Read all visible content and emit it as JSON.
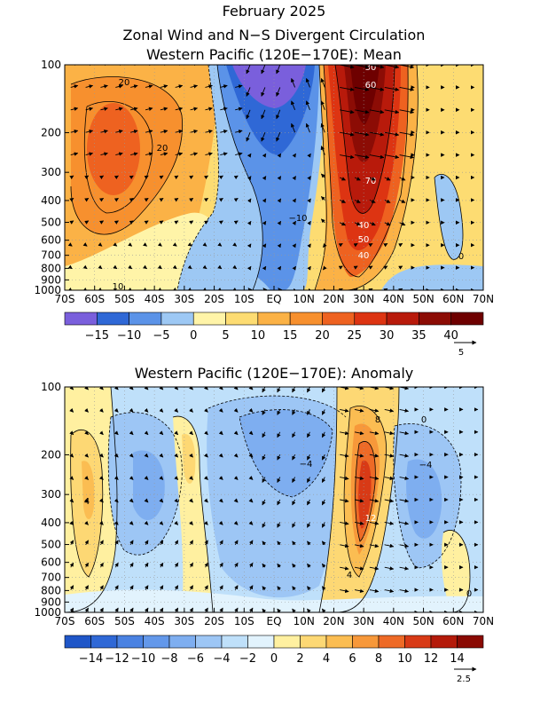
{
  "header": {
    "line1": "February 2025",
    "line2": "Zonal Wind and N−S Divergent Circulation"
  },
  "chart_data": [
    {
      "type": "heatmap",
      "title": "Western Pacific (120E−170E): Mean",
      "x_ticks": [
        "70S",
        "60S",
        "50S",
        "40S",
        "30S",
        "20S",
        "10S",
        "EQ",
        "10N",
        "20N",
        "30N",
        "40N",
        "50N",
        "60N",
        "70N"
      ],
      "y_ticks": [
        100,
        200,
        300,
        400,
        500,
        600,
        700,
        800,
        900,
        1000
      ],
      "y_scale": "log-pressure (inverted)",
      "colorbar_levels": [
        -15,
        -10,
        -5,
        0,
        5,
        10,
        15,
        20,
        25,
        30,
        35,
        40
      ],
      "colorbar_labels": [
        "−15",
        "−10",
        "−5",
        "0",
        "5",
        "10",
        "15",
        "20",
        "25",
        "30",
        "35",
        "40"
      ],
      "colorbar_colors": [
        "#7a5fdc",
        "#2f68d6",
        "#5b93e8",
        "#9dc8f4",
        "#fff4a8",
        "#fddc72",
        "#fbb246",
        "#f7902e",
        "#ee6220",
        "#dd3412",
        "#b81a0b",
        "#8c0c05",
        "#6e0000"
      ],
      "vector_ref": "5",
      "contour_labels": [
        "20",
        "20",
        "60",
        "30",
        "70",
        "−10",
        "40",
        "50",
        "40",
        "0",
        "10"
      ],
      "features": [
        {
          "name": "SH subtropical westerly max",
          "lat": -50,
          "p": 250,
          "value": 25
        },
        {
          "name": "NH subtropical jet core",
          "lat": 32,
          "p": 200,
          "value": 70
        },
        {
          "name": "Equatorial upper easterlies",
          "lat": 5,
          "p": 120,
          "value": -15
        }
      ]
    },
    {
      "type": "heatmap",
      "title": "Western Pacific (120E−170E): Anomaly",
      "x_ticks": [
        "70S",
        "60S",
        "50S",
        "40S",
        "30S",
        "20S",
        "10S",
        "EQ",
        "10N",
        "20N",
        "30N",
        "40N",
        "50N",
        "60N",
        "70N"
      ],
      "y_ticks": [
        100,
        200,
        300,
        400,
        500,
        600,
        700,
        800,
        900,
        1000
      ],
      "y_scale": "log-pressure (inverted)",
      "colorbar_levels": [
        -14,
        -12,
        -10,
        -8,
        -6,
        -4,
        -2,
        0,
        2,
        4,
        6,
        8,
        10,
        12,
        14
      ],
      "colorbar_labels": [
        "−14",
        "−12",
        "−10",
        "−8",
        "−6",
        "−4",
        "−2",
        "0",
        "2",
        "4",
        "6",
        "8",
        "10",
        "12",
        "14"
      ],
      "colorbar_colors": [
        "#1f56c8",
        "#2f68d6",
        "#4a82e2",
        "#6398ea",
        "#7eaef0",
        "#9dc6f5",
        "#bfe0fa",
        "#e2f3fd",
        "#fff0a0",
        "#fdd874",
        "#fbbd52",
        "#f7983a",
        "#ee6a26",
        "#d83a16",
        "#b41a0a",
        "#8a0a03"
      ],
      "vector_ref": "2.5",
      "contour_labels": [
        "8",
        "0",
        "−4",
        "4",
        "−4",
        "12",
        "4",
        "0"
      ],
      "features": [
        {
          "name": "NH jet-flank positive anomaly",
          "lat": 32,
          "p": 350,
          "value": 12
        },
        {
          "name": "Mid-latitude negative anomaly",
          "lat": 45,
          "p": 230,
          "value": -4
        },
        {
          "name": "SH positive anomaly",
          "lat": -62,
          "p": 260,
          "value": 4
        }
      ]
    }
  ]
}
